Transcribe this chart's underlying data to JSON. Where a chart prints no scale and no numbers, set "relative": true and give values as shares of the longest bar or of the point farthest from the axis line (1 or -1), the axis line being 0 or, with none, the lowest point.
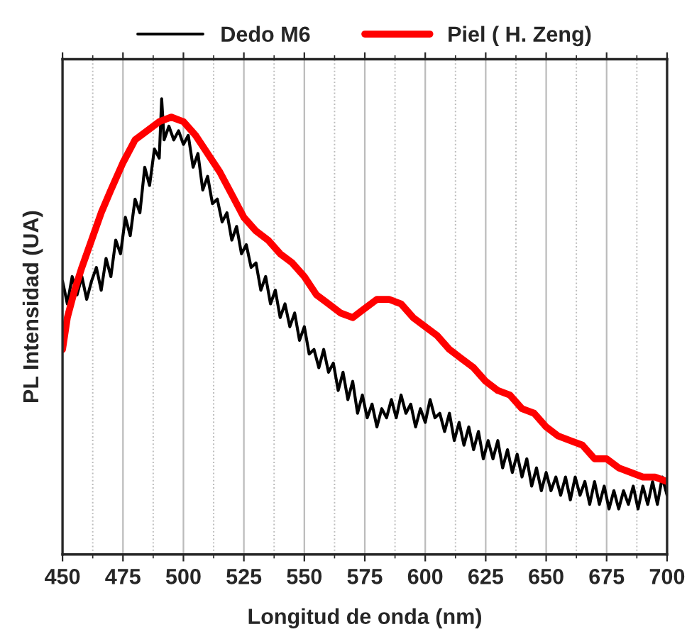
{
  "chart_data": {
    "type": "line",
    "relative": true,
    "xlabel": "Longitud de onda (nm)",
    "ylabel": "PL Intensidad (UA)",
    "xlim": [
      450,
      700
    ],
    "xticks": [
      450,
      475,
      500,
      525,
      550,
      575,
      600,
      625,
      650,
      675,
      700
    ],
    "grid": "x",
    "legend": "top",
    "tick_labels": "x",
    "line_style": "solid",
    "marker": "none",
    "series": [
      {
        "name": "Dedo M6",
        "color": "#000000",
        "x": [
          450,
          452,
          454,
          456,
          458,
          460,
          462,
          464,
          466,
          468,
          470,
          472,
          474,
          476,
          478,
          480,
          482,
          484,
          486,
          488,
          490,
          491,
          492,
          494,
          496,
          498,
          500,
          502,
          504,
          506,
          508,
          510,
          512,
          514,
          516,
          518,
          520,
          522,
          524,
          526,
          528,
          530,
          532,
          534,
          536,
          538,
          540,
          542,
          544,
          546,
          548,
          550,
          552,
          554,
          556,
          558,
          560,
          562,
          564,
          566,
          568,
          570,
          572,
          574,
          576,
          578,
          580,
          582,
          584,
          586,
          588,
          590,
          592,
          594,
          596,
          598,
          600,
          602,
          604,
          606,
          608,
          610,
          612,
          614,
          616,
          618,
          620,
          622,
          624,
          626,
          628,
          630,
          632,
          634,
          636,
          638,
          640,
          642,
          644,
          646,
          648,
          650,
          652,
          654,
          656,
          658,
          660,
          662,
          664,
          666,
          668,
          670,
          672,
          674,
          676,
          678,
          680,
          682,
          684,
          686,
          688,
          690,
          692,
          694,
          696,
          698,
          700
        ],
        "values": [
          0.6,
          0.55,
          0.61,
          0.57,
          0.61,
          0.56,
          0.6,
          0.63,
          0.58,
          0.65,
          0.61,
          0.69,
          0.66,
          0.74,
          0.7,
          0.78,
          0.75,
          0.85,
          0.81,
          0.89,
          0.87,
          1.0,
          0.91,
          0.94,
          0.91,
          0.93,
          0.9,
          0.92,
          0.85,
          0.88,
          0.8,
          0.83,
          0.77,
          0.78,
          0.73,
          0.75,
          0.69,
          0.72,
          0.66,
          0.68,
          0.63,
          0.64,
          0.58,
          0.61,
          0.55,
          0.58,
          0.52,
          0.55,
          0.5,
          0.53,
          0.47,
          0.5,
          0.44,
          0.45,
          0.41,
          0.45,
          0.4,
          0.42,
          0.36,
          0.4,
          0.34,
          0.38,
          0.31,
          0.35,
          0.3,
          0.33,
          0.28,
          0.32,
          0.3,
          0.34,
          0.3,
          0.35,
          0.31,
          0.33,
          0.28,
          0.32,
          0.29,
          0.34,
          0.3,
          0.31,
          0.27,
          0.31,
          0.25,
          0.29,
          0.24,
          0.28,
          0.23,
          0.27,
          0.21,
          0.25,
          0.21,
          0.25,
          0.19,
          0.23,
          0.18,
          0.22,
          0.17,
          0.21,
          0.15,
          0.19,
          0.14,
          0.18,
          0.14,
          0.17,
          0.13,
          0.17,
          0.12,
          0.17,
          0.13,
          0.16,
          0.11,
          0.16,
          0.11,
          0.15,
          0.1,
          0.14,
          0.1,
          0.14,
          0.11,
          0.15,
          0.1,
          0.15,
          0.11,
          0.16,
          0.11,
          0.17,
          0.13
        ]
      },
      {
        "name": "Piel ( H. Zeng)",
        "color": "#ff0000",
        "x": [
          450,
          452,
          455,
          458,
          462,
          466,
          470,
          475,
          480,
          485,
          490,
          495,
          500,
          505,
          510,
          515,
          520,
          525,
          530,
          535,
          540,
          545,
          550,
          555,
          560,
          565,
          570,
          575,
          580,
          585,
          590,
          595,
          600,
          605,
          610,
          615,
          620,
          625,
          630,
          635,
          640,
          645,
          650,
          655,
          660,
          665,
          670,
          675,
          680,
          685,
          690,
          695,
          700
        ],
        "values": [
          0.45,
          0.52,
          0.58,
          0.63,
          0.69,
          0.75,
          0.8,
          0.86,
          0.91,
          0.93,
          0.95,
          0.96,
          0.95,
          0.92,
          0.88,
          0.84,
          0.79,
          0.74,
          0.71,
          0.69,
          0.66,
          0.64,
          0.61,
          0.57,
          0.55,
          0.53,
          0.52,
          0.54,
          0.56,
          0.56,
          0.55,
          0.52,
          0.5,
          0.48,
          0.45,
          0.43,
          0.41,
          0.38,
          0.36,
          0.35,
          0.32,
          0.31,
          0.28,
          0.26,
          0.25,
          0.24,
          0.21,
          0.21,
          0.19,
          0.18,
          0.17,
          0.17,
          0.16
        ]
      }
    ]
  }
}
